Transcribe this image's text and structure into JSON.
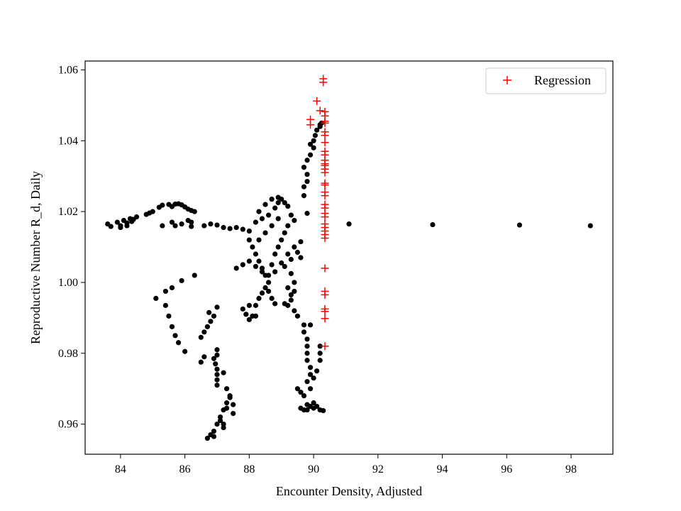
{
  "chart_data": {
    "type": "scatter",
    "xlabel": "Encounter Density, Adjusted",
    "ylabel": "Reproductive Number R_d, Daily",
    "xlim": [
      82.9,
      99.3
    ],
    "ylim": [
      0.9515,
      1.0625
    ],
    "xticks": [
      84,
      86,
      88,
      90,
      92,
      94,
      96,
      98
    ],
    "yticks": [
      0.96,
      0.98,
      1.0,
      1.02,
      1.04,
      1.06
    ],
    "xtick_labels": [
      "84",
      "86",
      "88",
      "90",
      "92",
      "94",
      "96",
      "98"
    ],
    "ytick_labels": [
      "0.96",
      "0.98",
      "1.00",
      "1.02",
      "1.04",
      "1.06"
    ],
    "grid": false,
    "legend": {
      "position": "top-right",
      "entries": [
        "Regression"
      ]
    },
    "series": [
      {
        "marker": "dot",
        "color": "#000000",
        "points": [
          [
            83.6,
            1.0165
          ],
          [
            83.7,
            1.0158
          ],
          [
            83.9,
            1.017
          ],
          [
            84.0,
            1.016
          ],
          [
            84.1,
            1.0175
          ],
          [
            84.2,
            1.0168
          ],
          [
            84.3,
            1.018
          ],
          [
            84.35,
            1.0172
          ],
          [
            84.0,
            1.0155
          ],
          [
            84.2,
            1.016
          ],
          [
            84.4,
            1.0178
          ],
          [
            84.5,
            1.0185
          ],
          [
            84.8,
            1.0192
          ],
          [
            84.9,
            1.0196
          ],
          [
            85.0,
            1.02
          ],
          [
            85.2,
            1.0212
          ],
          [
            85.3,
            1.0218
          ],
          [
            85.5,
            1.022
          ],
          [
            85.6,
            1.0214
          ],
          [
            85.7,
            1.0221
          ],
          [
            85.8,
            1.0222
          ],
          [
            85.9,
            1.0219
          ],
          [
            86.0,
            1.0213
          ],
          [
            86.1,
            1.0207
          ],
          [
            86.2,
            1.0203
          ],
          [
            86.3,
            1.02
          ],
          [
            85.3,
            1.016
          ],
          [
            85.6,
            1.017
          ],
          [
            85.7,
            1.016
          ],
          [
            85.9,
            1.0165
          ],
          [
            86.1,
            1.0175
          ],
          [
            86.2,
            1.017
          ],
          [
            86.2,
            1.0158
          ],
          [
            86.6,
            1.016
          ],
          [
            86.8,
            1.0165
          ],
          [
            87.0,
            1.0162
          ],
          [
            87.2,
            1.0155
          ],
          [
            87.4,
            1.0152
          ],
          [
            87.6,
            1.0155
          ],
          [
            85.1,
            0.9955
          ],
          [
            85.4,
            0.9975
          ],
          [
            85.6,
            0.9985
          ],
          [
            85.9,
            1.0005
          ],
          [
            86.3,
            1.002
          ],
          [
            85.4,
            0.9935
          ],
          [
            85.5,
            0.9905
          ],
          [
            85.6,
            0.9875
          ],
          [
            85.7,
            0.985
          ],
          [
            85.8,
            0.983
          ],
          [
            86.0,
            0.9805
          ],
          [
            86.5,
            0.9845
          ],
          [
            86.6,
            0.986
          ],
          [
            86.7,
            0.9875
          ],
          [
            86.8,
            0.989
          ],
          [
            86.9,
            0.9905
          ],
          [
            87.0,
            0.993
          ],
          [
            86.75,
            0.9915
          ],
          [
            86.5,
            0.9775
          ],
          [
            86.6,
            0.979
          ],
          [
            86.9,
            0.9785
          ],
          [
            87.0,
            0.9795
          ],
          [
            86.95,
            0.977
          ],
          [
            87.0,
            0.9755
          ],
          [
            87.0,
            0.974
          ],
          [
            87.0,
            0.9725
          ],
          [
            87.0,
            0.971
          ],
          [
            87.2,
            0.9745
          ],
          [
            87.3,
            0.97
          ],
          [
            87.4,
            0.9675
          ],
          [
            87.5,
            0.963
          ],
          [
            87.5,
            0.9655
          ],
          [
            87.3,
            0.9645
          ],
          [
            87.2,
            0.96
          ],
          [
            87.2,
            0.959
          ],
          [
            87.1,
            0.961
          ],
          [
            86.9,
            0.958
          ],
          [
            86.8,
            0.957
          ],
          [
            86.7,
            0.956
          ],
          [
            86.9,
            0.9565
          ],
          [
            87.0,
            0.96
          ],
          [
            87.1,
            0.962
          ],
          [
            87.2,
            0.964
          ],
          [
            87.3,
            0.966
          ],
          [
            87.4,
            0.968
          ],
          [
            87.0,
            0.981
          ],
          [
            87.8,
            1.015
          ],
          [
            88.0,
            1.0145
          ],
          [
            88.2,
            1.017
          ],
          [
            88.3,
            1.02
          ],
          [
            88.4,
            1.018
          ],
          [
            88.6,
            1.019
          ],
          [
            88.8,
            1.021
          ],
          [
            88.9,
            1.0225
          ],
          [
            89.0,
            1.0235
          ],
          [
            89.1,
            1.0225
          ],
          [
            89.2,
            1.0215
          ],
          [
            89.3,
            1.019
          ],
          [
            89.4,
            1.0175
          ],
          [
            88.5,
            1.022
          ],
          [
            88.7,
            1.0235
          ],
          [
            88.9,
            1.024
          ],
          [
            88.0,
            1.012
          ],
          [
            88.1,
            1.01
          ],
          [
            88.2,
            1.008
          ],
          [
            88.3,
            1.006
          ],
          [
            88.4,
            1.004
          ],
          [
            88.5,
            1.002
          ],
          [
            88.6,
            1.0
          ],
          [
            88.7,
            1.005
          ],
          [
            88.8,
            1.008
          ],
          [
            88.9,
            1.01
          ],
          [
            89.0,
            1.012
          ],
          [
            89.1,
            1.014
          ],
          [
            89.2,
            1.016
          ],
          [
            88.3,
            1.012
          ],
          [
            88.5,
            1.014
          ],
          [
            88.7,
            1.016
          ],
          [
            88.9,
            1.018
          ],
          [
            87.6,
            1.004
          ],
          [
            87.8,
            1.005
          ],
          [
            88.0,
            1.006
          ],
          [
            88.2,
            1.0045
          ],
          [
            88.4,
            1.003
          ],
          [
            88.6,
            1.002
          ],
          [
            88.8,
            1.003
          ],
          [
            89.0,
            1.0055
          ],
          [
            89.2,
            1.008
          ],
          [
            89.4,
            1.01
          ],
          [
            89.6,
            1.0115
          ],
          [
            89.5,
            1.0085
          ],
          [
            89.3,
            1.0065
          ],
          [
            89.1,
            1.0045
          ],
          [
            89.3,
            1.0025
          ],
          [
            89.4,
            1.0
          ],
          [
            89.6,
            1.007
          ],
          [
            87.8,
            0.9925
          ],
          [
            87.9,
            0.991
          ],
          [
            88.0,
            0.9895
          ],
          [
            88.1,
            0.9905
          ],
          [
            88.2,
            0.9935
          ],
          [
            88.3,
            0.9955
          ],
          [
            88.4,
            0.997
          ],
          [
            88.5,
            0.9985
          ],
          [
            88.6,
            0.9975
          ],
          [
            88.7,
            0.9955
          ],
          [
            88.8,
            0.994
          ],
          [
            88.2,
            0.9905
          ],
          [
            88.0,
            0.9935
          ],
          [
            89.1,
            0.994
          ],
          [
            89.2,
            0.9935
          ],
          [
            89.3,
            0.995
          ],
          [
            89.4,
            0.992
          ],
          [
            89.5,
            0.9905
          ],
          [
            89.3,
            0.9965
          ],
          [
            89.2,
            0.9985
          ],
          [
            89.4,
            0.9975
          ],
          [
            89.7,
            1.0245
          ],
          [
            89.7,
            1.027
          ],
          [
            89.8,
            1.0285
          ],
          [
            89.8,
            1.0305
          ],
          [
            89.7,
            1.0325
          ],
          [
            89.8,
            1.0345
          ],
          [
            89.9,
            1.036
          ],
          [
            90.0,
            1.038
          ],
          [
            90.0,
            1.04
          ],
          [
            90.05,
            1.0415
          ],
          [
            90.1,
            1.043
          ],
          [
            90.2,
            1.044
          ],
          [
            90.2,
            1.0445
          ],
          [
            90.25,
            1.045
          ],
          [
            89.9,
            1.039
          ],
          [
            89.8,
            1.0195
          ],
          [
            89.6,
            0.9645
          ],
          [
            89.7,
            0.964
          ],
          [
            89.8,
            0.964
          ],
          [
            89.9,
            0.965
          ],
          [
            90.0,
            0.966
          ],
          [
            90.1,
            0.965
          ],
          [
            90.2,
            0.964
          ],
          [
            90.3,
            0.9638
          ],
          [
            90.0,
            0.9645
          ],
          [
            89.8,
            0.9655
          ],
          [
            89.7,
            0.968
          ],
          [
            89.6,
            0.969
          ],
          [
            89.5,
            0.97
          ],
          [
            89.8,
            0.972
          ],
          [
            89.9,
            0.974
          ],
          [
            89.9,
            0.976
          ],
          [
            89.8,
            0.978
          ],
          [
            89.8,
            0.98
          ],
          [
            89.8,
            0.982
          ],
          [
            89.8,
            0.984
          ],
          [
            89.7,
            0.986
          ],
          [
            89.7,
            0.988
          ],
          [
            89.9,
            0.97
          ],
          [
            90.0,
            0.973
          ],
          [
            90.1,
            0.975
          ],
          [
            90.2,
            0.978
          ],
          [
            90.2,
            0.98
          ],
          [
            90.2,
            0.982
          ],
          [
            89.9,
            0.988
          ],
          [
            91.1,
            1.0165
          ],
          [
            93.7,
            1.0163
          ],
          [
            96.4,
            1.0162
          ],
          [
            98.6,
            1.016
          ]
        ]
      },
      {
        "name": "Regression",
        "marker": "plus",
        "color": "#ff0000",
        "points": [
          [
            90.3,
            1.0575
          ],
          [
            90.3,
            1.0565
          ],
          [
            90.1,
            1.0512
          ],
          [
            90.2,
            1.0485
          ],
          [
            90.35,
            1.0482
          ],
          [
            90.35,
            1.047
          ],
          [
            89.9,
            1.046
          ],
          [
            89.9,
            1.0445
          ],
          [
            90.35,
            1.0455
          ],
          [
            90.35,
            1.045
          ],
          [
            90.35,
            1.0425
          ],
          [
            90.35,
            1.0415
          ],
          [
            90.35,
            1.0395
          ],
          [
            90.35,
            1.037
          ],
          [
            90.35,
            1.036
          ],
          [
            90.35,
            1.0345
          ],
          [
            90.35,
            1.0335
          ],
          [
            90.35,
            1.033
          ],
          [
            90.35,
            1.032
          ],
          [
            90.35,
            1.031
          ],
          [
            90.35,
            1.028
          ],
          [
            90.35,
            1.0275
          ],
          [
            90.35,
            1.0255
          ],
          [
            90.35,
            1.0245
          ],
          [
            90.35,
            1.022
          ],
          [
            90.35,
            1.021
          ],
          [
            90.35,
            1.0195
          ],
          [
            90.35,
            1.0185
          ],
          [
            90.35,
            1.0165
          ],
          [
            90.35,
            1.0155
          ],
          [
            90.35,
            1.0145
          ],
          [
            90.35,
            1.0135
          ],
          [
            90.35,
            1.0125
          ],
          [
            90.35,
            1.004
          ],
          [
            90.35,
            0.9975
          ],
          [
            90.35,
            0.9965
          ],
          [
            90.35,
            0.9925
          ],
          [
            90.35,
            0.9918
          ],
          [
            90.35,
            0.9898
          ],
          [
            90.35,
            0.982
          ]
        ]
      }
    ]
  }
}
